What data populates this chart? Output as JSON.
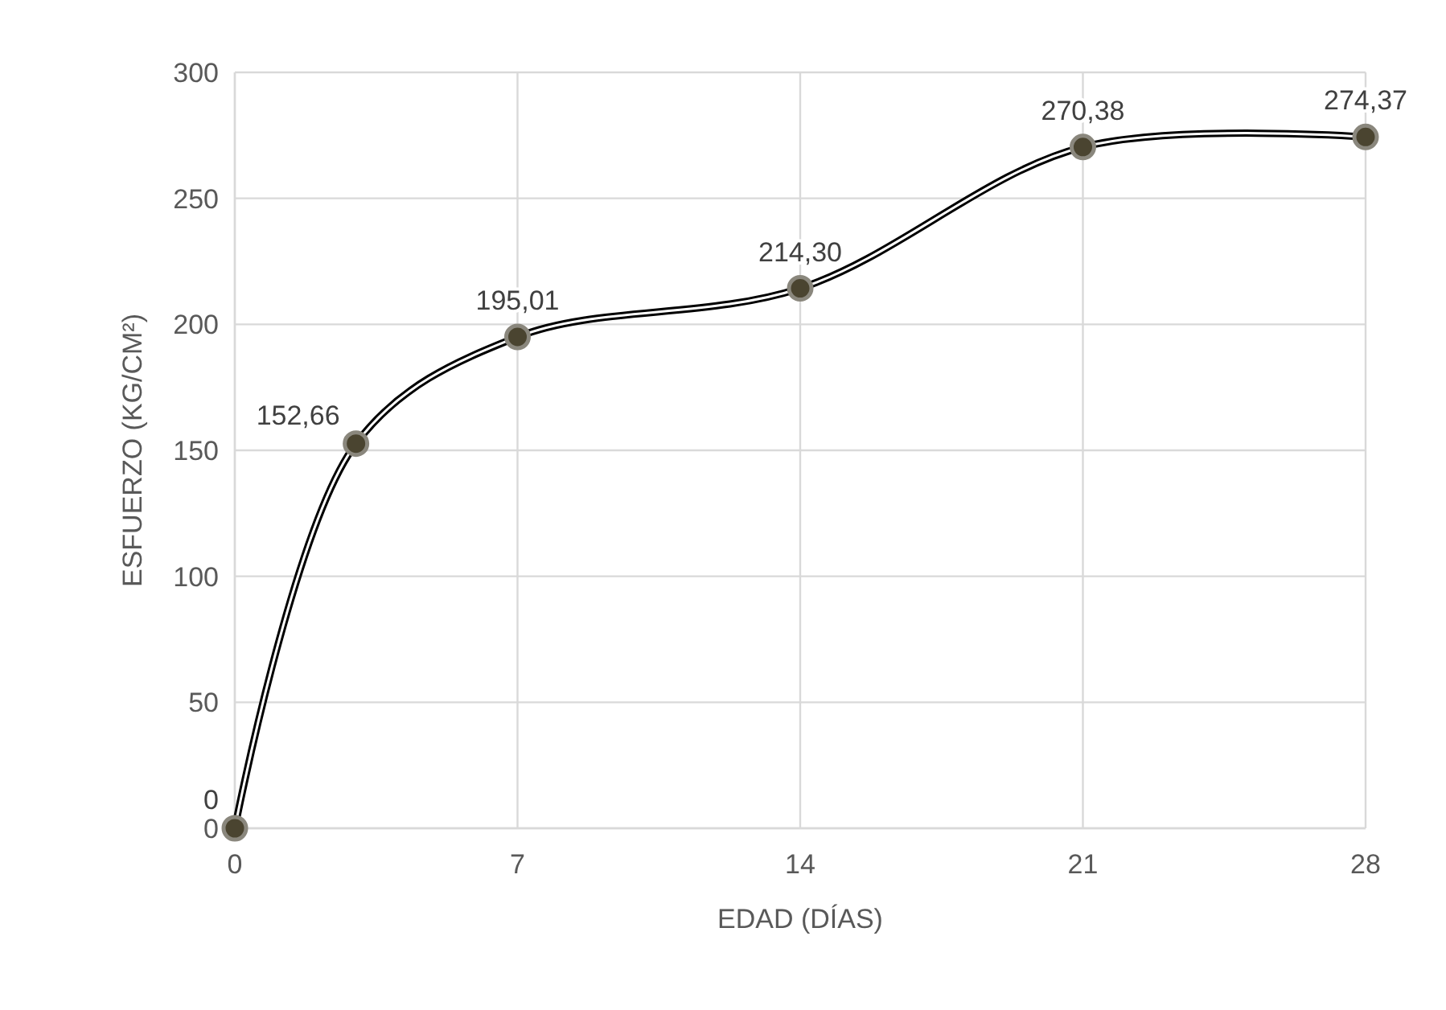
{
  "chart_data": {
    "type": "line",
    "xlabel": "EDAD (DÍAS)",
    "ylabel": "ESFUERZO (KG/CM²)",
    "x": [
      0,
      3,
      7,
      14,
      21,
      28
    ],
    "series": [
      {
        "color": "#000000",
        "values": [
          0,
          152.66,
          195.01,
          214.3,
          270.38,
          274.37
        ],
        "value_labels": [
          "0",
          "152,66",
          "195,01",
          "214,30",
          "270,38",
          "274,37"
        ]
      }
    ],
    "xlim": [
      0,
      28
    ],
    "xticks": [
      0,
      7,
      14,
      21,
      28
    ],
    "ylim": [
      0,
      300
    ],
    "yticks": [
      0,
      50,
      100,
      150,
      200,
      250,
      300
    ],
    "grid": true,
    "marker": "circle",
    "line_style": "solid"
  }
}
